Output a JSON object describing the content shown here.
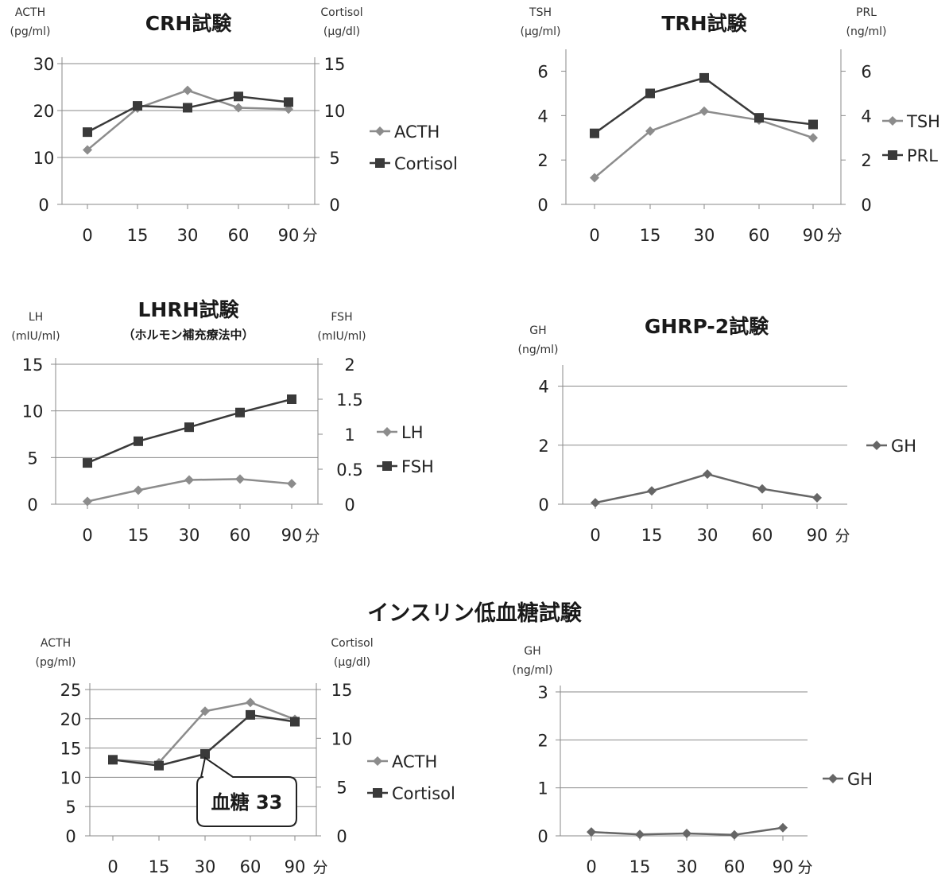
{
  "page": {
    "section_title": "インスリン低血糖試験"
  },
  "colors": {
    "series_light": "#8c8c8c",
    "series_dark": "#3a3a3a",
    "gh": "#666666",
    "grid": "#8a8a8a"
  },
  "chart_data": [
    {
      "id": "crh",
      "type": "line",
      "title": "CRH試験",
      "categories": [
        "0",
        "15",
        "30",
        "60",
        "90"
      ],
      "x_unit": "分",
      "left_axis": {
        "label": [
          "ACTH",
          "(pg/ml)"
        ],
        "ylim": [
          0,
          30
        ],
        "ticks": [
          "0",
          "10",
          "20",
          "30"
        ]
      },
      "right_axis": {
        "label": [
          "Cortisol",
          "(μg/dl)"
        ],
        "ylim": [
          0,
          15
        ],
        "ticks": [
          "0",
          "5",
          "10",
          "15"
        ]
      },
      "grid": true,
      "legend_position": "right",
      "series": [
        {
          "name": "ACTH",
          "axis": "left",
          "marker": "diamond",
          "color": "#8c8c8c",
          "values": [
            11.6,
            20.5,
            24.3,
            20.6,
            20.3
          ]
        },
        {
          "name": "Cortisol",
          "axis": "right",
          "marker": "square",
          "color": "#3a3a3a",
          "values": [
            7.7,
            10.5,
            10.3,
            11.5,
            10.9
          ]
        }
      ]
    },
    {
      "id": "trh",
      "type": "line",
      "title": "TRH試験",
      "categories": [
        "0",
        "15",
        "30",
        "60",
        "90"
      ],
      "x_unit": "分",
      "left_axis": {
        "label": [
          "TSH",
          "(μg/ml)"
        ],
        "ylim": [
          0,
          6.7
        ],
        "ticks": [
          "0",
          "2",
          "4",
          "6"
        ]
      },
      "right_axis": {
        "label": [
          "PRL",
          "(ng/ml)"
        ],
        "ylim": [
          0,
          6.7
        ],
        "ticks": [
          "0",
          "2",
          "4",
          "6"
        ]
      },
      "grid": false,
      "legend_position": "right",
      "series": [
        {
          "name": "TSH",
          "axis": "left",
          "marker": "diamond",
          "color": "#8c8c8c",
          "values": [
            1.2,
            3.3,
            4.2,
            3.8,
            3.0
          ]
        },
        {
          "name": "PRL",
          "axis": "right",
          "marker": "square",
          "color": "#3a3a3a",
          "values": [
            3.2,
            5.0,
            5.7,
            3.9,
            3.6
          ]
        }
      ]
    },
    {
      "id": "lhrh",
      "type": "line",
      "title": "LHRH試験",
      "subtitle": "（ホルモン補充療法中）",
      "categories": [
        "0",
        "15",
        "30",
        "60",
        "90"
      ],
      "x_unit": "分",
      "left_axis": {
        "label": [
          "LH",
          "(mIU/ml)"
        ],
        "ylim": [
          0,
          15
        ],
        "ticks": [
          "0",
          "5",
          "10",
          "15"
        ]
      },
      "right_axis": {
        "label": [
          "FSH",
          "(mIU/ml)"
        ],
        "ylim": [
          0,
          2
        ],
        "ticks": [
          "0",
          "0.5",
          "1",
          "1.5",
          "2"
        ]
      },
      "grid": true,
      "legend_position": "right",
      "series": [
        {
          "name": "LH",
          "axis": "left",
          "marker": "diamond",
          "color": "#8c8c8c",
          "values": [
            0.3,
            1.5,
            2.6,
            2.7,
            2.2
          ]
        },
        {
          "name": "FSH",
          "axis": "right",
          "marker": "square",
          "color": "#3a3a3a",
          "values": [
            0.59,
            0.9,
            1.1,
            1.31,
            1.5
          ]
        }
      ]
    },
    {
      "id": "ghrp2",
      "type": "line",
      "title": "GHRP-2試験",
      "categories": [
        "0",
        "15",
        "30",
        "60",
        "90"
      ],
      "x_unit": "分",
      "left_axis": {
        "label": [
          "GH",
          "(ng/ml)"
        ],
        "ylim": [
          0,
          4.5
        ],
        "ticks": [
          "0",
          "2",
          "4"
        ]
      },
      "grid": true,
      "legend_position": "right",
      "series": [
        {
          "name": "GH",
          "axis": "left",
          "marker": "diamond",
          "color": "#666666",
          "values": [
            0.05,
            0.45,
            1.02,
            0.52,
            0.22
          ]
        }
      ]
    },
    {
      "id": "itt_acth",
      "type": "line",
      "categories": [
        "0",
        "15",
        "30",
        "60",
        "90"
      ],
      "x_unit": "分",
      "left_axis": {
        "label": [
          "ACTH",
          "(pg/ml)"
        ],
        "ylim": [
          0,
          25
        ],
        "ticks": [
          "0",
          "5",
          "10",
          "15",
          "20",
          "25"
        ]
      },
      "right_axis": {
        "label": [
          "Cortisol",
          "(μg/dl)"
        ],
        "ylim": [
          0,
          15
        ],
        "ticks": [
          "0",
          "5",
          "10",
          "15"
        ]
      },
      "grid": true,
      "legend_position": "right",
      "callout": {
        "text": "血糖 33",
        "category": "30"
      },
      "series": [
        {
          "name": "ACTH",
          "axis": "left",
          "marker": "diamond",
          "color": "#8c8c8c",
          "values": [
            13.0,
            12.5,
            21.3,
            22.8,
            19.9
          ]
        },
        {
          "name": "Cortisol",
          "axis": "right",
          "marker": "square",
          "color": "#3a3a3a",
          "values": [
            7.8,
            7.2,
            8.4,
            12.4,
            11.7
          ]
        }
      ]
    },
    {
      "id": "itt_gh",
      "type": "line",
      "categories": [
        "0",
        "15",
        "30",
        "60",
        "90"
      ],
      "x_unit": "分",
      "left_axis": {
        "label": [
          "GH",
          "(ng/ml)"
        ],
        "ylim": [
          0,
          3
        ],
        "ticks": [
          "0",
          "1",
          "2",
          "3"
        ]
      },
      "grid": true,
      "legend_position": "right",
      "series": [
        {
          "name": "GH",
          "axis": "left",
          "marker": "diamond",
          "color": "#666666",
          "values": [
            0.08,
            0.03,
            0.05,
            0.02,
            0.17
          ]
        }
      ]
    }
  ]
}
